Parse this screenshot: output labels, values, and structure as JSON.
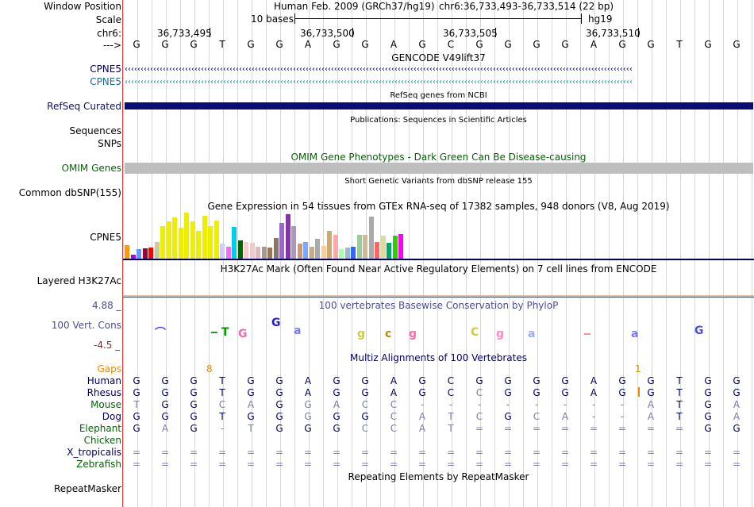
{
  "labels": {
    "window_position": "Window Position",
    "scale": "Scale",
    "chrom": "chr6:",
    "arrow": "--->",
    "cpne5_a": "CPNE5",
    "cpne5_b": "CPNE5",
    "refseq": "RefSeq Curated",
    "sequences": "Sequences",
    "snps": "SNPs",
    "omim": "OMIM Genes",
    "dbsnp": "Common dbSNP(155)",
    "gtex": "CPNE5",
    "h3k27": "Layered H3K27Ac",
    "cons": "100 Vert. Cons",
    "gaps": "Gaps",
    "repeatmasker": "RepeatMasker"
  },
  "header": {
    "assembly": "Human Feb. 2009 (GRCh37/hg19)",
    "position": "chr6:36,733,493-36,733,514 (22 bp)",
    "scale_text": "10 bases",
    "assembly_short": "hg19",
    "coords": [
      "36,733,495",
      "36,733,500",
      "36,733,505",
      "36,733,510"
    ]
  },
  "bases": [
    "G",
    "G",
    "G",
    "T",
    "G",
    "G",
    "A",
    "G",
    "G",
    "A",
    "G",
    "C",
    "G",
    "G",
    "G",
    "G",
    "A",
    "G",
    "G",
    "T",
    "G",
    "G"
  ],
  "tracks": {
    "gencode_title": "GENCODE V49lift37",
    "refseq_title": "RefSeq genes from NCBI",
    "pubs_title": "Publications: Sequences in Scientific Articles",
    "omim_title": "OMIM Gene Phenotypes - Dark Green Can Be Disease-causing",
    "dbsnp_title": "Short Genetic Variants from dbSNP release 155",
    "gtex_title": "Gene Expression in 54 tissues from GTEx RNA-seq of 17382 samples, 948 donors (V8, Aug 2019)",
    "h3k27_title": "H3K27Ac Mark (Often Found Near Active Regulatory Elements) on 7 cell lines from ENCODE",
    "cons_title": "100 vertebrates Basewise Conservation by PhyloP",
    "cons_max": "4.88 _",
    "cons_min": "-4.5 _",
    "multiz_title": "Multiz Alignments of 100 Vertebrates",
    "repeat_title": "Repeating Elements by RepeatMasker"
  },
  "gtex": {
    "values": [
      16,
      5,
      11,
      12,
      13,
      20,
      38,
      44,
      48,
      36,
      54,
      44,
      33,
      50,
      38,
      45,
      18,
      14,
      37,
      21,
      20,
      19,
      14,
      14,
      13,
      24,
      42,
      52,
      38,
      18,
      20,
      14,
      23,
      15,
      33,
      28,
      11,
      13,
      14,
      28,
      28,
      49,
      20,
      27,
      19,
      27,
      29
    ],
    "colors": [
      "#ff9900",
      "#aa00ff",
      "#6699ff",
      "#990033",
      "#ff0000",
      "#cccc99",
      "#eeee00",
      "#eeee00",
      "#eeee00",
      "#eeee00",
      "#eeee00",
      "#eeee00",
      "#eeee00",
      "#eeee00",
      "#eeee00",
      "#eeee00",
      "#ccccff",
      "#ff66ff",
      "#00ccee",
      "#006600",
      "#ffcccc",
      "#eecccc",
      "#ddbbbb",
      "#aa9988",
      "#997755",
      "#887766",
      "#9966cc",
      "#8833aa",
      "#aa99bb",
      "#cc9977",
      "#77aaff",
      "#ccaa88",
      "#aaaaaa",
      "#ffcc99",
      "#ccaa77",
      "#ffaaaa",
      "#aaffaa",
      "#99bbcc",
      "#3366ff",
      "#99cc99",
      "#ccbb99",
      "#aaaaaa",
      "#ff6666",
      "#dddd99",
      "#00aa66",
      "#33cc00",
      "#ff00ff"
    ]
  },
  "gaps": {
    "left": "8",
    "right": "1"
  },
  "alignment": [
    {
      "species": "Human",
      "color": "#000066",
      "bases": [
        "G",
        "G",
        "G",
        "T",
        "G",
        "G",
        "A",
        "G",
        "G",
        "A",
        "G",
        "C",
        "G",
        "G",
        "G",
        "G",
        "A",
        "G",
        "G",
        "T",
        "G",
        "G"
      ],
      "grey": []
    },
    {
      "species": "Rhesus",
      "color": "#000066",
      "bases": [
        "G",
        "G",
        "G",
        "T",
        "G",
        "G",
        "A",
        "G",
        "G",
        "A",
        "G",
        "C",
        "C",
        "G",
        "G",
        "G",
        "A",
        "G",
        "G",
        "T",
        "G",
        "G"
      ],
      "grey": [
        12
      ]
    },
    {
      "species": "Mouse",
      "color": "#006600",
      "bases": [
        "T",
        "G",
        "G",
        "C",
        "A",
        "G",
        "G",
        "A",
        "C",
        "C",
        "-",
        "-",
        "-",
        "-",
        "-",
        "-",
        "-",
        "-",
        "A",
        "T",
        "G",
        "A"
      ],
      "grey": [
        0,
        3,
        4,
        6,
        7,
        8,
        9,
        10,
        11,
        12,
        13,
        14,
        15,
        16,
        17,
        18,
        21
      ]
    },
    {
      "species": "Dog",
      "color": "#000066",
      "bases": [
        "G",
        "G",
        "G",
        "T",
        "G",
        "G",
        "G",
        "G",
        "G",
        "C",
        "A",
        "T",
        "C",
        "G",
        "C",
        "A",
        "-",
        "-",
        "A",
        "T",
        "G",
        "A"
      ],
      "grey": [
        6,
        9,
        10,
        11,
        12,
        14,
        15,
        16,
        17,
        18,
        21
      ]
    },
    {
      "species": "Elephant",
      "color": "#006600",
      "bases": [
        "G",
        "A",
        "G",
        "-",
        "T",
        "G",
        "G",
        "G",
        "C",
        "C",
        "A",
        "T",
        "=",
        "=",
        "=",
        "=",
        "=",
        "=",
        "=",
        "=",
        "G",
        "G"
      ],
      "grey": [
        1,
        3,
        4,
        8,
        9,
        10,
        11,
        12,
        13,
        14,
        15,
        16,
        17,
        18,
        19
      ]
    },
    {
      "species": "Chicken",
      "color": "#006600",
      "bases": [],
      "grey": []
    },
    {
      "species": "X_tropicalis",
      "color": "#000066",
      "bases": [
        "=",
        "=",
        "=",
        "=",
        "=",
        "=",
        "=",
        "=",
        "=",
        "=",
        "=",
        "=",
        "=",
        "=",
        "=",
        "=",
        "=",
        "=",
        "=",
        "=",
        "=",
        "="
      ],
      "grey": [
        0,
        1,
        2,
        3,
        4,
        5,
        6,
        7,
        8,
        9,
        10,
        11,
        12,
        13,
        14,
        15,
        16,
        17,
        18,
        19,
        20,
        21
      ]
    },
    {
      "species": "Zebrafish",
      "color": "#006600",
      "bases": [
        "=",
        "=",
        "=",
        "=",
        "=",
        "=",
        "=",
        "=",
        "=",
        "=",
        "=",
        "=",
        "=",
        "=",
        "=",
        "=",
        "=",
        "=",
        "=",
        "=",
        "=",
        "="
      ],
      "grey": [
        0,
        1,
        2,
        3,
        4,
        5,
        6,
        7,
        8,
        9,
        10,
        11,
        12,
        13,
        14,
        15,
        16,
        17,
        18,
        19,
        20,
        21
      ]
    }
  ],
  "colors": {
    "gencode": "#000066",
    "gencode_b": "#1a6a9a",
    "refseq": "#0c0c78",
    "omim_bar": "#bebebe",
    "omim_label": "#006600",
    "cons_title": "#4b4b9b",
    "cons_max": "#4b4b9b",
    "cons_min": "#7a2e2e",
    "gaps": "#ee8800"
  }
}
